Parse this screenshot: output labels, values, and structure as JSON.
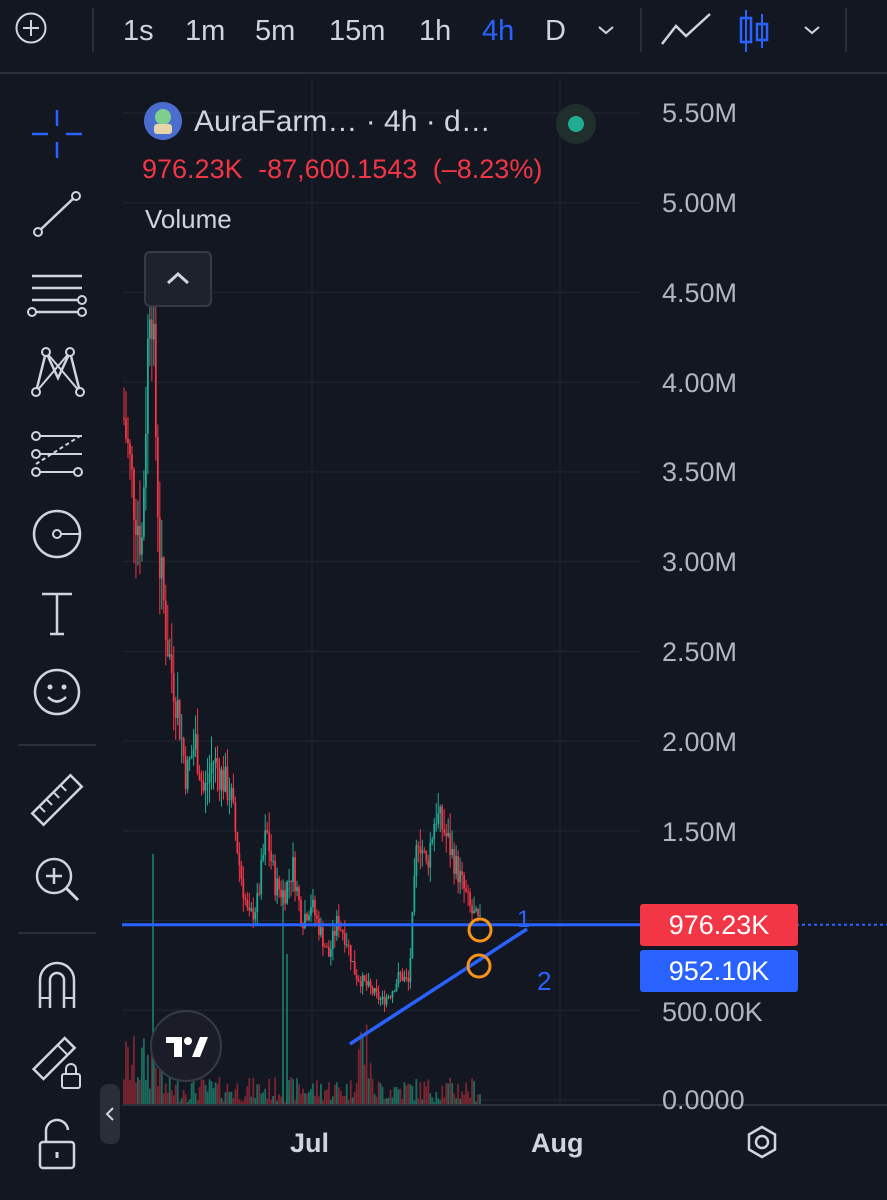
{
  "toolbar": {
    "timeframes": [
      "1s",
      "1m",
      "5m",
      "15m",
      "1h",
      "4h",
      "D"
    ],
    "active_timeframe": "4h",
    "accent": "#2962ff"
  },
  "left_tools": [
    "crosshair-icon",
    "trend-line-icon",
    "horizontal-lines-icon",
    "pattern-icon",
    "fib-icon",
    "measure-circle-icon",
    "text-icon",
    "emoji-icon",
    "ruler-icon",
    "zoom-in-icon",
    "magnet-icon",
    "lock-draw-icon",
    "unlock-icon"
  ],
  "symbol": {
    "title": "AuraFarm… · 4h · d…",
    "price": "976.23K",
    "change": "-87,600.1543",
    "change_pct": "(–8.23%)",
    "change_color": "#f23645"
  },
  "indicator": {
    "label": "Volume"
  },
  "price_axis": {
    "ticks": [
      "5.50M",
      "5.00M",
      "4.50M",
      "4.00M",
      "3.50M",
      "3.00M",
      "2.50M",
      "2.00M",
      "1.50M",
      "500.00K",
      "0.0000"
    ]
  },
  "price_tags": [
    {
      "value": "976.23K",
      "color": "#f23645"
    },
    {
      "value": "952.10K",
      "color": "#2962ff"
    }
  ],
  "annotations": {
    "label1": "1",
    "label2": "2"
  },
  "time_axis": {
    "ticks": [
      "Jul",
      "Aug"
    ]
  },
  "chart_data": {
    "type": "candlestick",
    "title": "",
    "ylim": [
      0,
      5500000
    ],
    "approx_close_path": [
      [
        0,
        3800000
      ],
      [
        3,
        3400000
      ],
      [
        6,
        3100000
      ],
      [
        9,
        4700000
      ],
      [
        12,
        3000000
      ],
      [
        15,
        2500000
      ],
      [
        18,
        2200000
      ],
      [
        21,
        1800000
      ],
      [
        24,
        2000000
      ],
      [
        27,
        1700000
      ],
      [
        30,
        1900000
      ],
      [
        33,
        1800000
      ],
      [
        36,
        1700000
      ],
      [
        39,
        1300000
      ],
      [
        42,
        1000000
      ],
      [
        45,
        1100000
      ],
      [
        48,
        1500000
      ],
      [
        51,
        1200000
      ],
      [
        54,
        1150000
      ],
      [
        57,
        1300000
      ],
      [
        60,
        1000000
      ],
      [
        63,
        1100000
      ],
      [
        66,
        950000
      ],
      [
        69,
        800000
      ],
      [
        72,
        1000000
      ],
      [
        75,
        900000
      ],
      [
        78,
        700000
      ],
      [
        81,
        650000
      ],
      [
        84,
        600000
      ],
      [
        87,
        550000
      ],
      [
        90,
        600000
      ],
      [
        93,
        700000
      ],
      [
        96,
        650000
      ],
      [
        99,
        1500000
      ],
      [
        102,
        1300000
      ],
      [
        105,
        1600000
      ],
      [
        108,
        1500000
      ],
      [
        111,
        1350000
      ],
      [
        114,
        1200000
      ],
      [
        117,
        1050000
      ],
      [
        120,
        976230
      ]
    ],
    "horizontal_line": 976230,
    "trendline_label": "952.10K"
  }
}
